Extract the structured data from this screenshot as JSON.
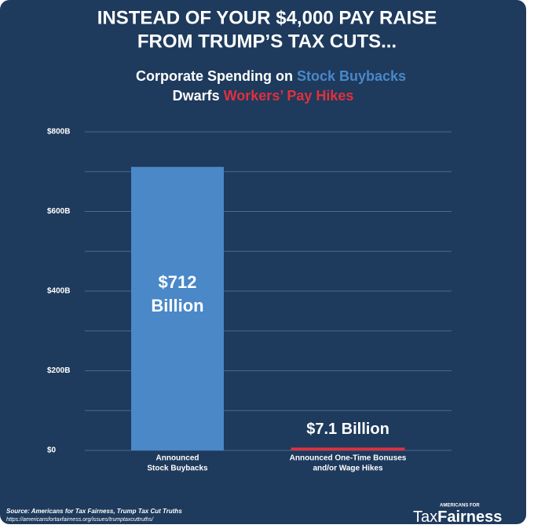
{
  "chart_data": {
    "type": "bar",
    "title": [
      "INSTEAD OF YOUR $4,000 PAY RAISE",
      "FROM TRUMP’S TAX CUTS..."
    ],
    "subtitle": [
      [
        {
          "text": "Corporate Spending on",
          "color": "#ffffff"
        },
        {
          "text": "Stock Buybacks",
          "color": "#4a88c8"
        }
      ],
      [
        {
          "text": "Dwarfs",
          "color": "#ffffff"
        },
        {
          "text": "Workers’ Pay Hikes",
          "color": "#e0303e"
        }
      ]
    ],
    "categories": [
      [
        "Announced",
        "Stock Buybacks"
      ],
      [
        "Announced One-Time Bonuses",
        "and/or Wage Hikes"
      ]
    ],
    "values": [
      712,
      7.1
    ],
    "value_labels": [
      "$712 Billion",
      "$7.1 Billion"
    ],
    "colors": [
      "#4a88c8",
      "#e0303e"
    ],
    "ylim": [
      0,
      800
    ],
    "yticks": [
      {
        "value": 0,
        "label": "$0"
      },
      {
        "value": 200,
        "label": "$200B"
      },
      {
        "value": 400,
        "label": "$400B"
      },
      {
        "value": 600,
        "label": "$600B"
      },
      {
        "value": 800,
        "label": "$800B"
      }
    ],
    "minor_yticks": [
      100,
      300,
      500,
      700
    ],
    "grid": true,
    "source": [
      "Source: Americans for Tax Fairness, Trump Tax Cut Truths",
      "https://americansfortaxfairness.org/issues/trumptaxcuttruths/"
    ],
    "logo": {
      "small": "AMERICANS FOR",
      "name": [
        "Tax",
        "Fairness"
      ]
    }
  }
}
